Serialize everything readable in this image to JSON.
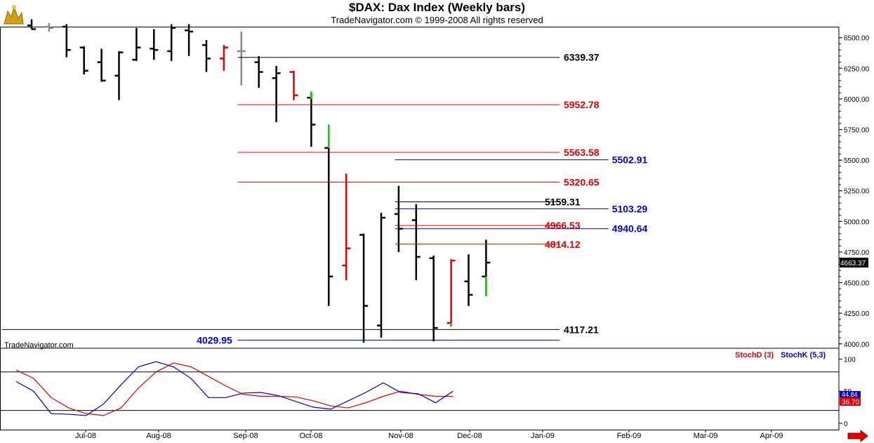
{
  "header": {
    "title": "$DAX:  Dax Index  (Weekly bars)",
    "subtitle": "TradeNavigator.com © 1999-2008 All rights reserved",
    "logo_icon": "bull-bear-logo-icon"
  },
  "watermark": "TradeNavigator.com",
  "last_price": "4663.37",
  "scroll_arrow_icon": "right-arrow-icon",
  "colors": {
    "black": "#000000",
    "red": "#e00000",
    "blue": "#0000cc",
    "green": "#00dd00",
    "gray": "#888888"
  },
  "chart_data": [
    {
      "type": "ohlc",
      "title": "$DAX:  Dax Index  (Weekly bars)",
      "y_ticks": [
        "6500.00",
        "6250.00",
        "6000.00",
        "5750.00",
        "5500.00",
        "5250.00",
        "5000.00",
        "4750.00",
        "4500.00",
        "4250.00",
        "4000.00"
      ],
      "ylim": [
        3970,
        6590
      ],
      "x_labels": [
        "Jul-08",
        "Aug-08",
        "Sep-08",
        "Oct-08",
        "Nov-08",
        "Dec-08",
        "Jan-09",
        "Feb-09",
        "Mar-09",
        "Apr-09"
      ],
      "bars": [
        {
          "week": 0,
          "o": 6600,
          "h": 6650,
          "l": 6570,
          "c": 6570,
          "color": "black"
        },
        {
          "week": 1,
          "o": 6590,
          "h": 6620,
          "l": 6550,
          "c": 6580,
          "color": "gray"
        },
        {
          "week": 2,
          "o": 6590,
          "h": 6610,
          "l": 6340,
          "c": 6400,
          "color": "black"
        },
        {
          "week": 3,
          "o": 6420,
          "h": 6430,
          "l": 6200,
          "c": 6230,
          "color": "black"
        },
        {
          "week": 4,
          "o": 6300,
          "h": 6410,
          "l": 6140,
          "c": 6150,
          "color": "black"
        },
        {
          "week": 5,
          "o": 6190,
          "h": 6390,
          "l": 5990,
          "c": 6380,
          "color": "black"
        },
        {
          "week": 6,
          "o": 6320,
          "h": 6580,
          "l": 6310,
          "c": 6420,
          "color": "black"
        },
        {
          "week": 7,
          "o": 6410,
          "h": 6570,
          "l": 6320,
          "c": 6400,
          "color": "black"
        },
        {
          "week": 8,
          "o": 6390,
          "h": 6610,
          "l": 6310,
          "c": 6580,
          "color": "black"
        },
        {
          "week": 9,
          "o": 6560,
          "h": 6610,
          "l": 6350,
          "c": 6550,
          "color": "black"
        },
        {
          "week": 10,
          "o": 6440,
          "h": 6480,
          "l": 6220,
          "c": 6330,
          "color": "black"
        },
        {
          "week": 11,
          "o": 6330,
          "h": 6440,
          "l": 6230,
          "c": 6420,
          "color": "red"
        },
        {
          "week": 12,
          "o": 6390,
          "h": 6550,
          "l": 6110,
          "c": 6390,
          "color": "gray"
        },
        {
          "week": 13,
          "o": 6300,
          "h": 6350,
          "l": 6090,
          "c": 6220,
          "color": "black"
        },
        {
          "week": 14,
          "o": 6170,
          "h": 6270,
          "l": 5810,
          "c": 6210,
          "color": "black"
        },
        {
          "week": 15,
          "o": 6220,
          "h": 6230,
          "l": 6000,
          "c": 6030,
          "color": "red"
        },
        {
          "week": 16,
          "o": 6010,
          "h": 6060,
          "l": 5610,
          "c": 5790,
          "color": "black"
        },
        {
          "week": 17,
          "o": 5600,
          "h": 5790,
          "l": 4310,
          "c": 4550,
          "color": "black"
        },
        {
          "week": 18,
          "o": 4640,
          "h": 5390,
          "l": 4520,
          "c": 4780,
          "color": "red"
        },
        {
          "week": 19,
          "o": 4890,
          "h": 4900,
          "l": 4010,
          "c": 4310,
          "color": "black"
        },
        {
          "week": 20,
          "o": 4150,
          "h": 5070,
          "l": 4050,
          "c": 5030,
          "color": "black"
        },
        {
          "week": 21,
          "o": 5060,
          "h": 5290,
          "l": 4750,
          "c": 4940,
          "color": "black"
        },
        {
          "week": 22,
          "o": 5010,
          "h": 5140,
          "l": 4520,
          "c": 4710,
          "color": "black"
        },
        {
          "week": 23,
          "o": 4700,
          "h": 4720,
          "l": 4020,
          "c": 4130,
          "color": "black"
        },
        {
          "week": 24,
          "o": 4170,
          "h": 4690,
          "l": 4140,
          "c": 4680,
          "color": "red"
        },
        {
          "week": 25,
          "o": 4510,
          "h": 4730,
          "l": 4310,
          "c": 4400,
          "color": "black"
        },
        {
          "week": 26,
          "o": 4550,
          "h": 4850,
          "l": 4390,
          "c": 4663.37,
          "color": "black"
        }
      ],
      "bar_wick_highlights": [
        {
          "week": 15,
          "from": 5990,
          "to": 6000,
          "color": "red"
        },
        {
          "week": 16,
          "from": 6000,
          "to": 6060,
          "color": "green"
        },
        {
          "week": 17,
          "from": 5600,
          "to": 5790,
          "color": "green"
        },
        {
          "week": 24,
          "from": 4140,
          "to": 4170,
          "color": "green"
        },
        {
          "week": 26,
          "from": 4390,
          "to": 4550,
          "color": "green"
        }
      ],
      "levels": [
        {
          "label": "6339.37",
          "value": 6339.37,
          "color": "black",
          "start_week": 11.8,
          "end_week": 30.2,
          "label_side": "right"
        },
        {
          "label": "5952.78",
          "value": 5952.78,
          "color": "red",
          "start_week": 11.8,
          "end_week": 30.2,
          "label_side": "right"
        },
        {
          "label": "5563.58",
          "value": 5563.58,
          "color": "red",
          "start_week": 11.8,
          "end_week": 30.2,
          "label_side": "right"
        },
        {
          "label": "5502.91",
          "value": 5502.91,
          "color": "blue",
          "start_week": 20.8,
          "end_week": 33.0,
          "label_side": "far-right"
        },
        {
          "label": "5320.65",
          "value": 5320.65,
          "color": "red",
          "start_week": 11.8,
          "end_week": 30.2,
          "label_side": "right"
        },
        {
          "label": "5159.31",
          "value": 5159.31,
          "color": "black",
          "start_week": 20.8,
          "end_week": 30.2,
          "label_side": "mid"
        },
        {
          "label": "5103.29",
          "value": 5103.29,
          "color": "blue",
          "start_week": 20.8,
          "end_week": 33.0,
          "label_side": "far-right"
        },
        {
          "label": "4966.53",
          "value": 4966.53,
          "color": "red",
          "start_week": 20.8,
          "end_week": 30.2,
          "label_side": "mid"
        },
        {
          "label": "4940.64",
          "value": 4940.64,
          "color": "blue",
          "start_week": 20.8,
          "end_week": 33.0,
          "label_side": "far-right"
        },
        {
          "label": "4814.12",
          "value": 4814.12,
          "color": "red",
          "start_week": 20.8,
          "end_week": 30.2,
          "label_side": "mid"
        },
        {
          "label": "4117.21",
          "value": 4117.21,
          "color": "black",
          "start_week": -1.7,
          "end_week": 30.2,
          "label_side": "right"
        },
        {
          "label": "4029.95",
          "value": 4029.95,
          "color": "blue",
          "start_week": 11.8,
          "end_week": 30.2,
          "label_side": "left"
        }
      ]
    },
    {
      "type": "line",
      "series": [
        {
          "name": "StochD (3)",
          "color": "red",
          "values": [
            83,
            70,
            40,
            24,
            15,
            12,
            24,
            55,
            80,
            94,
            88,
            73,
            58,
            45,
            42,
            42,
            41,
            35,
            27,
            24,
            32,
            42,
            50,
            45,
            42,
            42
          ]
        },
        {
          "name": "StochK (5,3)",
          "color": "blue",
          "values": [
            65,
            50,
            15,
            14,
            12,
            30,
            60,
            88,
            96,
            88,
            70,
            40,
            40,
            47,
            48,
            43,
            34,
            25,
            22,
            35,
            48,
            63,
            48,
            46,
            32,
            50
          ]
        }
      ],
      "y_ticks": [
        "100",
        "50",
        "0"
      ],
      "ylim": [
        -10,
        117
      ],
      "last_labels": [
        "44.84",
        "36.70"
      ]
    }
  ]
}
